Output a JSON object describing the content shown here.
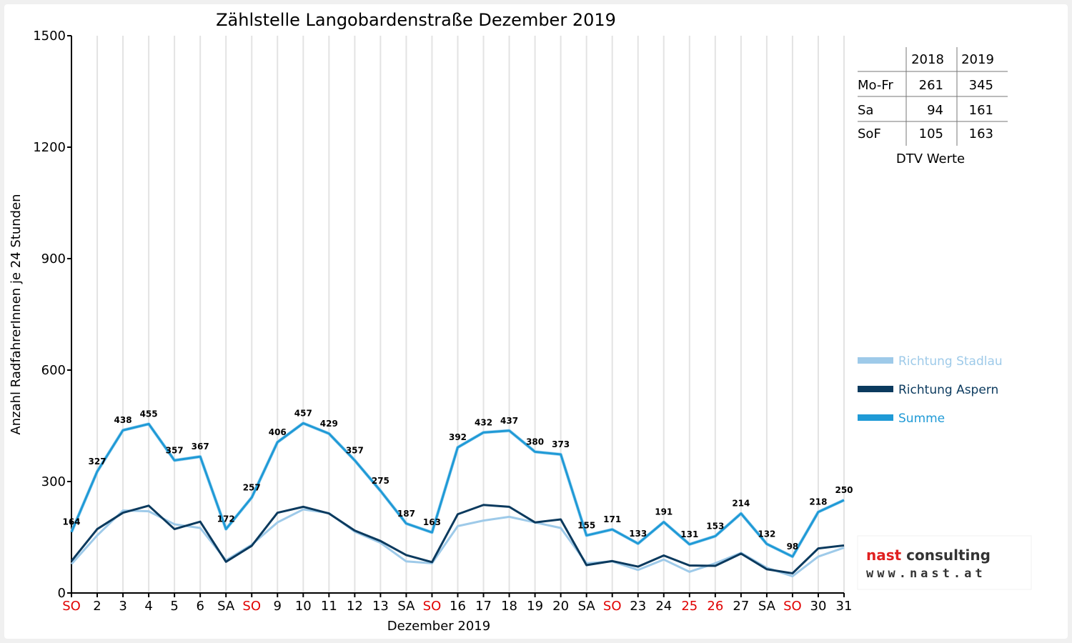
{
  "colors": {
    "stadlau": "#9ecae9",
    "aspern": "#0b3a5e",
    "summe": "#1f9ad6",
    "weekend": "#e00000",
    "logo_red": "#e02020",
    "logo_dark": "#333333"
  },
  "chart_data": {
    "type": "line",
    "title": "Zählstelle Langobardenstraße Dezember 2019",
    "xlabel": "Dezember 2019",
    "ylabel": "Anzahl RadfahrerInnen je 24 Stunden",
    "ylim": [
      0,
      1500
    ],
    "yticks": [
      0,
      300,
      600,
      900,
      1200,
      1500
    ],
    "grid": "vertical",
    "legend_position": "right",
    "categories": [
      "SO",
      "2",
      "3",
      "4",
      "5",
      "6",
      "SA",
      "SO",
      "9",
      "10",
      "11",
      "12",
      "13",
      "SA",
      "SO",
      "16",
      "17",
      "18",
      "19",
      "20",
      "SA",
      "SO",
      "23",
      "24",
      "25",
      "26",
      "27",
      "SA",
      "SO",
      "30",
      "31"
    ],
    "red_categories": [
      0,
      7,
      14,
      21,
      24,
      25,
      28
    ],
    "series": [
      {
        "name": "Richtung Stadlau",
        "color_key": "stadlau",
        "values": [
          78,
          155,
          222,
          220,
          185,
          175,
          88,
          130,
          190,
          225,
          215,
          165,
          135,
          85,
          80,
          180,
          195,
          205,
          190,
          175,
          80,
          85,
          62,
          90,
          57,
          80,
          108,
          68,
          45,
          98,
          122
        ]
      },
      {
        "name": "Richtung Aspern",
        "color_key": "aspern",
        "values": [
          86,
          172,
          216,
          235,
          172,
          192,
          84,
          127,
          216,
          232,
          214,
          168,
          140,
          102,
          83,
          212,
          237,
          232,
          190,
          198,
          75,
          86,
          71,
          101,
          74,
          73,
          106,
          64,
          53,
          120,
          128
        ]
      },
      {
        "name": "Summe",
        "color_key": "summe",
        "values": [
          164,
          327,
          438,
          455,
          357,
          367,
          172,
          257,
          406,
          457,
          429,
          357,
          275,
          187,
          163,
          392,
          432,
          437,
          380,
          373,
          155,
          171,
          133,
          191,
          131,
          153,
          214,
          132,
          98,
          218,
          250
        ]
      }
    ]
  },
  "dtv_table": {
    "caption": "DTV Werte",
    "columns": [
      "2018",
      "2019"
    ],
    "rows": [
      {
        "label": "Mo-Fr",
        "values": [
          "261",
          "345"
        ]
      },
      {
        "label": "Sa",
        "values": [
          "94",
          "161"
        ]
      },
      {
        "label": "SoF",
        "values": [
          "105",
          "163"
        ]
      }
    ]
  },
  "logo": {
    "name_part1": "nast",
    "name_part2": " consulting",
    "url": "www.nast.at"
  }
}
